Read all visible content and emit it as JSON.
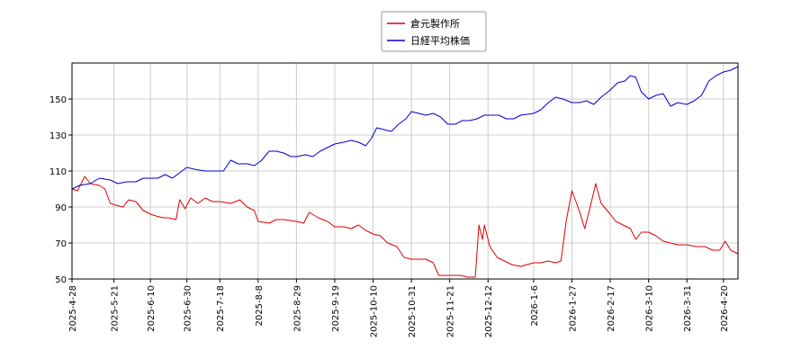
{
  "chart_data": {
    "type": "line",
    "title": "",
    "xlabel": "",
    "ylabel": "",
    "ylim": [
      50,
      170
    ],
    "yticks": [
      50,
      70,
      90,
      110,
      130,
      150
    ],
    "xlim": [
      "2025-04-28",
      "2026-04-28"
    ],
    "xticks": [
      "2025-4-28",
      "2025-5-21",
      "2025-6-10",
      "2025-6-30",
      "2025-7-18",
      "2025-8-8",
      "2025-8-29",
      "2025-9-19",
      "2025-10-10",
      "2025-10-31",
      "2025-11-21",
      "2025-12-12",
      "2026-1-6",
      "2026-1-27",
      "2026-2-17",
      "2026-3-10",
      "2026-3-31",
      "2026-4-20"
    ],
    "grid": true,
    "legend": "top-center",
    "series": [
      {
        "name": "倉元製作所",
        "color": "#dd0000",
        "points": [
          [
            "2025-04-28",
            100
          ],
          [
            "2025-05-01",
            99
          ],
          [
            "2025-05-05",
            107
          ],
          [
            "2025-05-08",
            103
          ],
          [
            "2025-05-13",
            102
          ],
          [
            "2025-05-16",
            100
          ],
          [
            "2025-05-19",
            92
          ],
          [
            "2025-05-22",
            91
          ],
          [
            "2025-05-26",
            90
          ],
          [
            "2025-05-29",
            94
          ],
          [
            "2025-06-02",
            93
          ],
          [
            "2025-06-06",
            88
          ],
          [
            "2025-06-10",
            86
          ],
          [
            "2025-06-13",
            85
          ],
          [
            "2025-06-17",
            84
          ],
          [
            "2025-06-20",
            84
          ],
          [
            "2025-06-24",
            83
          ],
          [
            "2025-06-26",
            94
          ],
          [
            "2025-06-29",
            89
          ],
          [
            "2025-07-02",
            95
          ],
          [
            "2025-07-06",
            92
          ],
          [
            "2025-07-10",
            95
          ],
          [
            "2025-07-14",
            93
          ],
          [
            "2025-07-18",
            93
          ],
          [
            "2025-07-24",
            92
          ],
          [
            "2025-07-29",
            94
          ],
          [
            "2025-08-02",
            90
          ],
          [
            "2025-08-06",
            88
          ],
          [
            "2025-08-08",
            82
          ],
          [
            "2025-08-14",
            81
          ],
          [
            "2025-08-18",
            83
          ],
          [
            "2025-08-22",
            83
          ],
          [
            "2025-08-29",
            82
          ],
          [
            "2025-09-02",
            81
          ],
          [
            "2025-09-05",
            87
          ],
          [
            "2025-09-10",
            84
          ],
          [
            "2025-09-15",
            82
          ],
          [
            "2025-09-19",
            79
          ],
          [
            "2025-09-24",
            79
          ],
          [
            "2025-09-28",
            78
          ],
          [
            "2025-10-02",
            80
          ],
          [
            "2025-10-06",
            77
          ],
          [
            "2025-10-10",
            75
          ],
          [
            "2025-10-14",
            74
          ],
          [
            "2025-10-18",
            70
          ],
          [
            "2025-10-23",
            68
          ],
          [
            "2025-10-27",
            62
          ],
          [
            "2025-10-31",
            61
          ],
          [
            "2025-11-04",
            61
          ],
          [
            "2025-11-08",
            61
          ],
          [
            "2025-11-12",
            59
          ],
          [
            "2025-11-15",
            52
          ],
          [
            "2025-11-21",
            52
          ],
          [
            "2025-11-27",
            52
          ],
          [
            "2025-12-01",
            51
          ],
          [
            "2025-12-05",
            51
          ],
          [
            "2025-12-07",
            80
          ],
          [
            "2025-12-09",
            72
          ],
          [
            "2025-12-10",
            80
          ],
          [
            "2025-12-13",
            68
          ],
          [
            "2025-12-17",
            62
          ],
          [
            "2025-12-21",
            60
          ],
          [
            "2025-12-25",
            58
          ],
          [
            "2025-12-30",
            57
          ],
          [
            "2026-01-06",
            59
          ],
          [
            "2026-01-10",
            59
          ],
          [
            "2026-01-14",
            60
          ],
          [
            "2026-01-18",
            59
          ],
          [
            "2026-01-21",
            60
          ],
          [
            "2026-01-24",
            83
          ],
          [
            "2026-01-27",
            99
          ],
          [
            "2026-01-31",
            88
          ],
          [
            "2026-02-03",
            78
          ],
          [
            "2026-02-06",
            90
          ],
          [
            "2026-02-09",
            103
          ],
          [
            "2026-02-12",
            92
          ],
          [
            "2026-02-17",
            86
          ],
          [
            "2026-02-20",
            82
          ],
          [
            "2026-02-24",
            80
          ],
          [
            "2026-02-28",
            78
          ],
          [
            "2026-03-03",
            72
          ],
          [
            "2026-03-06",
            76
          ],
          [
            "2026-03-10",
            76
          ],
          [
            "2026-03-14",
            74
          ],
          [
            "2026-03-18",
            71
          ],
          [
            "2026-03-22",
            70
          ],
          [
            "2026-03-26",
            69
          ],
          [
            "2026-03-31",
            69
          ],
          [
            "2026-04-05",
            68
          ],
          [
            "2026-04-10",
            68
          ],
          [
            "2026-04-14",
            66
          ],
          [
            "2026-04-18",
            66
          ],
          [
            "2026-04-21",
            71
          ],
          [
            "2026-04-24",
            66
          ],
          [
            "2026-04-28",
            64
          ]
        ]
      },
      {
        "name": "日経平均株価",
        "color": "#0000cc",
        "points": [
          [
            "2025-04-28",
            100
          ],
          [
            "2025-05-02",
            102
          ],
          [
            "2025-05-08",
            103
          ],
          [
            "2025-05-13",
            106
          ],
          [
            "2025-05-19",
            105
          ],
          [
            "2025-05-23",
            103
          ],
          [
            "2025-05-28",
            104
          ],
          [
            "2025-06-02",
            104
          ],
          [
            "2025-06-06",
            106
          ],
          [
            "2025-06-10",
            106
          ],
          [
            "2025-06-14",
            106
          ],
          [
            "2025-06-18",
            108
          ],
          [
            "2025-06-22",
            106
          ],
          [
            "2025-06-26",
            109
          ],
          [
            "2025-06-30",
            112
          ],
          [
            "2025-07-04",
            111
          ],
          [
            "2025-07-10",
            110
          ],
          [
            "2025-07-16",
            110
          ],
          [
            "2025-07-20",
            110
          ],
          [
            "2025-07-24",
            116
          ],
          [
            "2025-07-28",
            114
          ],
          [
            "2025-08-02",
            114
          ],
          [
            "2025-08-06",
            113
          ],
          [
            "2025-08-10",
            116
          ],
          [
            "2025-08-14",
            121
          ],
          [
            "2025-08-18",
            121
          ],
          [
            "2025-08-22",
            120
          ],
          [
            "2025-08-26",
            118
          ],
          [
            "2025-08-29",
            118
          ],
          [
            "2025-09-03",
            119
          ],
          [
            "2025-09-07",
            118
          ],
          [
            "2025-09-11",
            121
          ],
          [
            "2025-09-15",
            123
          ],
          [
            "2025-09-19",
            125
          ],
          [
            "2025-09-24",
            126
          ],
          [
            "2025-09-28",
            127
          ],
          [
            "2025-10-02",
            126
          ],
          [
            "2025-10-06",
            124
          ],
          [
            "2025-10-09",
            128
          ],
          [
            "2025-10-12",
            134
          ],
          [
            "2025-10-16",
            133
          ],
          [
            "2025-10-20",
            132
          ],
          [
            "2025-10-24",
            136
          ],
          [
            "2025-10-28",
            139
          ],
          [
            "2025-10-31",
            143
          ],
          [
            "2025-11-04",
            142
          ],
          [
            "2025-11-08",
            141
          ],
          [
            "2025-11-12",
            142
          ],
          [
            "2025-11-16",
            140
          ],
          [
            "2025-11-20",
            136
          ],
          [
            "2025-11-24",
            136
          ],
          [
            "2025-11-28",
            138
          ],
          [
            "2025-12-02",
            138
          ],
          [
            "2025-12-06",
            139
          ],
          [
            "2025-12-10",
            141
          ],
          [
            "2025-12-14",
            141
          ],
          [
            "2025-12-18",
            141
          ],
          [
            "2025-12-22",
            139
          ],
          [
            "2025-12-26",
            139
          ],
          [
            "2025-12-30",
            141
          ],
          [
            "2026-01-06",
            142
          ],
          [
            "2026-01-10",
            144
          ],
          [
            "2026-01-14",
            148
          ],
          [
            "2026-01-18",
            151
          ],
          [
            "2026-01-22",
            150
          ],
          [
            "2026-01-27",
            148
          ],
          [
            "2026-01-31",
            148
          ],
          [
            "2026-02-04",
            149
          ],
          [
            "2026-02-08",
            147
          ],
          [
            "2026-02-12",
            151
          ],
          [
            "2026-02-17",
            155
          ],
          [
            "2026-02-21",
            159
          ],
          [
            "2026-02-25",
            160
          ],
          [
            "2026-02-28",
            163
          ],
          [
            "2026-03-03",
            162
          ],
          [
            "2026-03-06",
            154
          ],
          [
            "2026-03-10",
            150
          ],
          [
            "2026-03-14",
            152
          ],
          [
            "2026-03-18",
            153
          ],
          [
            "2026-03-22",
            146
          ],
          [
            "2026-03-26",
            148
          ],
          [
            "2026-03-31",
            147
          ],
          [
            "2026-04-04",
            149
          ],
          [
            "2026-04-08",
            152
          ],
          [
            "2026-04-12",
            160
          ],
          [
            "2026-04-16",
            163
          ],
          [
            "2026-04-20",
            165
          ],
          [
            "2026-04-24",
            166
          ],
          [
            "2026-04-28",
            168
          ]
        ]
      }
    ]
  }
}
